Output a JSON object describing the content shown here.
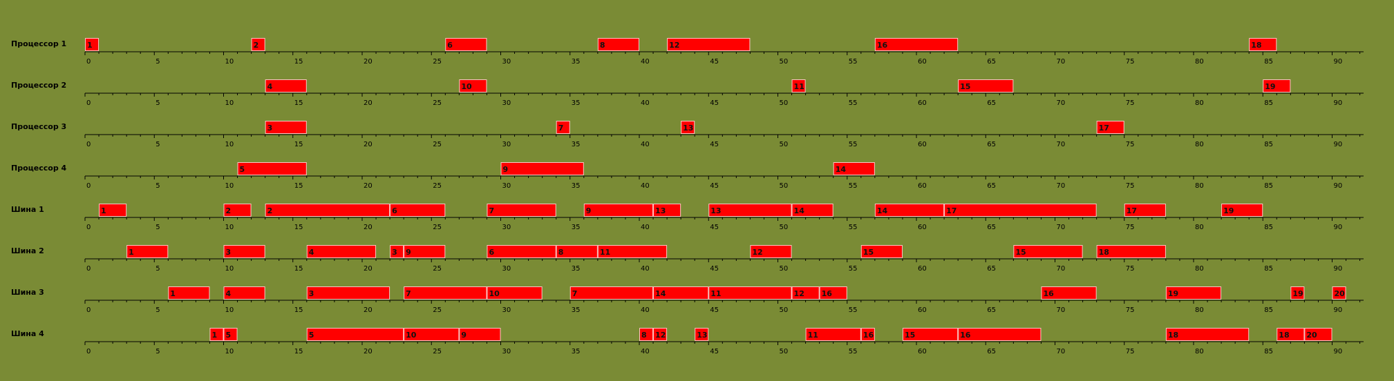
{
  "colors": {
    "background": "#7a8b35",
    "bar_fill": "#ff0000",
    "bar_edge": "#ffc4c4",
    "axis": "#000000"
  },
  "chart_data": {
    "type": "gantt",
    "title": "",
    "xlim": [
      0,
      92
    ],
    "x_ticks": [
      0,
      5,
      10,
      15,
      20,
      25,
      30,
      35,
      40,
      45,
      50,
      55,
      60,
      65,
      70,
      75,
      80,
      85,
      90
    ],
    "minor_tick_step": 1,
    "grid": false,
    "rows": [
      {
        "name": "Процессор 1",
        "tasks": [
          {
            "label": "1",
            "start": 0,
            "end": 1
          },
          {
            "label": "2",
            "start": 12,
            "end": 13
          },
          {
            "label": "6",
            "start": 26,
            "end": 29
          },
          {
            "label": "8",
            "start": 37,
            "end": 40
          },
          {
            "label": "12",
            "start": 42,
            "end": 48
          },
          {
            "label": "16",
            "start": 57,
            "end": 63
          },
          {
            "label": "18",
            "start": 84,
            "end": 86
          }
        ]
      },
      {
        "name": "Процессор 2",
        "tasks": [
          {
            "label": "4",
            "start": 13,
            "end": 16
          },
          {
            "label": "10",
            "start": 27,
            "end": 29
          },
          {
            "label": "11",
            "start": 51,
            "end": 52
          },
          {
            "label": "15",
            "start": 63,
            "end": 67
          },
          {
            "label": "19",
            "start": 85,
            "end": 87
          }
        ]
      },
      {
        "name": "Процессор 3",
        "tasks": [
          {
            "label": "3",
            "start": 13,
            "end": 16
          },
          {
            "label": "7",
            "start": 34,
            "end": 35
          },
          {
            "label": "13",
            "start": 43,
            "end": 44
          },
          {
            "label": "17",
            "start": 73,
            "end": 75
          }
        ]
      },
      {
        "name": "Процессор 4",
        "tasks": [
          {
            "label": "5",
            "start": 11,
            "end": 16
          },
          {
            "label": "9",
            "start": 30,
            "end": 36
          },
          {
            "label": "14",
            "start": 54,
            "end": 57
          }
        ]
      },
      {
        "name": "Шина 1",
        "tasks": [
          {
            "label": "1",
            "start": 1,
            "end": 3
          },
          {
            "label": "2",
            "start": 10,
            "end": 12
          },
          {
            "label": "2",
            "start": 13,
            "end": 22
          },
          {
            "label": "6",
            "start": 22,
            "end": 26
          },
          {
            "label": "7",
            "start": 29,
            "end": 34
          },
          {
            "label": "9",
            "start": 36,
            "end": 41
          },
          {
            "label": "13",
            "start": 41,
            "end": 43
          },
          {
            "label": "13",
            "start": 45,
            "end": 51
          },
          {
            "label": "14",
            "start": 51,
            "end": 54
          },
          {
            "label": "14",
            "start": 57,
            "end": 62
          },
          {
            "label": "17",
            "start": 62,
            "end": 73
          },
          {
            "label": "17",
            "start": 75,
            "end": 78
          },
          {
            "label": "19",
            "start": 82,
            "end": 85
          }
        ]
      },
      {
        "name": "Шина 2",
        "tasks": [
          {
            "label": "1",
            "start": 3,
            "end": 6
          },
          {
            "label": "3",
            "start": 10,
            "end": 13
          },
          {
            "label": "4",
            "start": 16,
            "end": 21
          },
          {
            "label": "3",
            "start": 22,
            "end": 23
          },
          {
            "label": "9",
            "start": 23,
            "end": 26
          },
          {
            "label": "6",
            "start": 29,
            "end": 34
          },
          {
            "label": "8",
            "start": 34,
            "end": 37
          },
          {
            "label": "11",
            "start": 37,
            "end": 42
          },
          {
            "label": "12",
            "start": 48,
            "end": 51
          },
          {
            "label": "15",
            "start": 56,
            "end": 59
          },
          {
            "label": "15",
            "start": 67,
            "end": 72
          },
          {
            "label": "18",
            "start": 73,
            "end": 78
          }
        ]
      },
      {
        "name": "Шина 3",
        "tasks": [
          {
            "label": "1",
            "start": 6,
            "end": 9
          },
          {
            "label": "4",
            "start": 10,
            "end": 13
          },
          {
            "label": "3",
            "start": 16,
            "end": 22
          },
          {
            "label": "7",
            "start": 23,
            "end": 29
          },
          {
            "label": "10",
            "start": 29,
            "end": 33
          },
          {
            "label": "7",
            "start": 35,
            "end": 41
          },
          {
            "label": "14",
            "start": 41,
            "end": 45
          },
          {
            "label": "11",
            "start": 45,
            "end": 51
          },
          {
            "label": "12",
            "start": 51,
            "end": 53
          },
          {
            "label": "16",
            "start": 53,
            "end": 55
          },
          {
            "label": "16",
            "start": 69,
            "end": 73
          },
          {
            "label": "19",
            "start": 78,
            "end": 82
          },
          {
            "label": "19",
            "start": 87,
            "end": 88
          },
          {
            "label": "20",
            "start": 90,
            "end": 91
          }
        ]
      },
      {
        "name": "Шина 4",
        "tasks": [
          {
            "label": "1",
            "start": 9,
            "end": 10
          },
          {
            "label": "5",
            "start": 10,
            "end": 11
          },
          {
            "label": "5",
            "start": 16,
            "end": 23
          },
          {
            "label": "10",
            "start": 23,
            "end": 27
          },
          {
            "label": "9",
            "start": 27,
            "end": 30
          },
          {
            "label": "8",
            "start": 40,
            "end": 41
          },
          {
            "label": "12",
            "start": 41,
            "end": 42
          },
          {
            "label": "13",
            "start": 44,
            "end": 45
          },
          {
            "label": "11",
            "start": 52,
            "end": 56
          },
          {
            "label": "16",
            "start": 56,
            "end": 57
          },
          {
            "label": "15",
            "start": 59,
            "end": 63
          },
          {
            "label": "16",
            "start": 63,
            "end": 69
          },
          {
            "label": "18",
            "start": 78,
            "end": 84
          },
          {
            "label": "18",
            "start": 86,
            "end": 88
          },
          {
            "label": "20",
            "start": 88,
            "end": 90
          }
        ]
      }
    ]
  }
}
